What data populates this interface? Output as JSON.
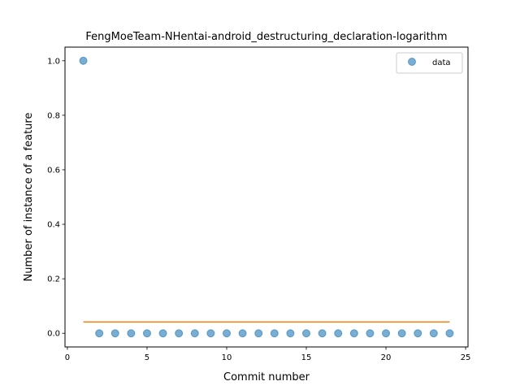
{
  "chart_data": {
    "type": "scatter",
    "title": "FengMoeTeam-NHentai-android_destructuring_declaration-logarithm",
    "xlabel": "Commit number",
    "ylabel": "Number of instance of a feature",
    "xlim": [
      -0.15,
      25.15
    ],
    "ylim": [
      -0.05,
      1.05
    ],
    "xticks": [
      0,
      5,
      10,
      15,
      20,
      25
    ],
    "yticks": [
      0.0,
      0.2,
      0.4,
      0.6,
      0.8,
      1.0
    ],
    "xtick_labels": [
      "0",
      "5",
      "10",
      "15",
      "20",
      "25"
    ],
    "ytick_labels": [
      "0.0",
      "0.2",
      "0.4",
      "0.6",
      "0.8",
      "1.0"
    ],
    "grid": false,
    "legend": {
      "position": "top-right",
      "entries": [
        "data"
      ]
    },
    "series": [
      {
        "name": "data",
        "kind": "scatter",
        "color": "#1f77b4",
        "x": [
          1,
          2,
          3,
          4,
          5,
          6,
          7,
          8,
          9,
          10,
          11,
          12,
          13,
          14,
          15,
          16,
          17,
          18,
          19,
          20,
          21,
          22,
          23,
          24
        ],
        "y": [
          1,
          0,
          0,
          0,
          0,
          0,
          0,
          0,
          0,
          0,
          0,
          0,
          0,
          0,
          0,
          0,
          0,
          0,
          0,
          0,
          0,
          0,
          0,
          0
        ]
      },
      {
        "kind": "line",
        "color": "#ff7f0e",
        "x": [
          1,
          24
        ],
        "y": [
          0.0417,
          0.0417
        ]
      }
    ]
  }
}
